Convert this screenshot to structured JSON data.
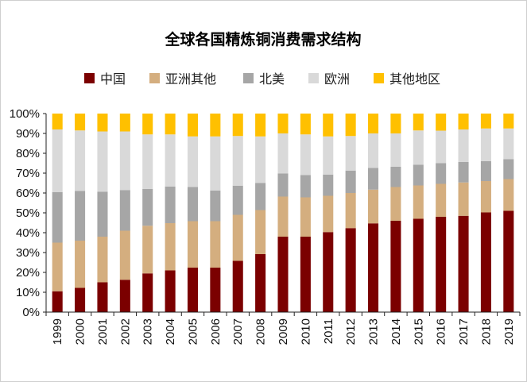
{
  "chart_data": {
    "type": "bar",
    "stacked": true,
    "percent": true,
    "title": "全球各国精炼铜消费需求结构",
    "xlabel": "",
    "ylabel": "",
    "ylim": [
      0,
      100
    ],
    "y_ticks": [
      "0%",
      "10%",
      "20%",
      "30%",
      "40%",
      "50%",
      "60%",
      "70%",
      "80%",
      "90%",
      "100%"
    ],
    "legend_position": "top",
    "categories": [
      "1999",
      "2000",
      "2001",
      "2002",
      "2003",
      "2004",
      "2005",
      "2006",
      "2007",
      "2008",
      "2009",
      "2010",
      "2011",
      "2012",
      "2013",
      "2014",
      "2015",
      "2016",
      "2017",
      "2018",
      "2019"
    ],
    "series": [
      {
        "name": "中国",
        "color": "#7b0000",
        "values": [
          10.5,
          12.2,
          15.0,
          16.3,
          19.5,
          21.0,
          22.4,
          22.4,
          25.8,
          29.2,
          38.0,
          38.0,
          40.3,
          42.3,
          44.7,
          46.0,
          47.0,
          48.0,
          48.5,
          50.2,
          51.0
        ]
      },
      {
        "name": "亚洲其他",
        "color": "#d4ae7f",
        "values": [
          24.5,
          23.8,
          23.0,
          24.7,
          24.0,
          23.8,
          23.4,
          23.4,
          23.2,
          22.2,
          20.2,
          19.8,
          18.3,
          17.7,
          17.0,
          17.0,
          16.8,
          16.6,
          16.8,
          15.8,
          16.0
        ]
      },
      {
        "name": "北美",
        "color": "#a6a6a6",
        "values": [
          25.5,
          25.0,
          22.6,
          20.5,
          18.5,
          18.4,
          17.2,
          15.4,
          14.7,
          13.7,
          11.6,
          11.2,
          10.7,
          11.3,
          10.9,
          10.2,
          10.4,
          10.4,
          10.3,
          10.0,
          10.0
        ]
      },
      {
        "name": "欧洲",
        "color": "#d9d9d9",
        "values": [
          31.5,
          30.5,
          30.4,
          29.5,
          27.5,
          26.3,
          25.5,
          27.3,
          25.0,
          23.4,
          20.2,
          20.5,
          19.2,
          17.4,
          17.4,
          16.8,
          17.3,
          16.4,
          16.4,
          16.5,
          15.5
        ]
      },
      {
        "name": "其他地区",
        "color": "#ffc000",
        "values": [
          8.0,
          8.5,
          9.0,
          9.0,
          10.5,
          10.5,
          11.5,
          11.5,
          11.3,
          11.5,
          10.0,
          10.5,
          11.5,
          11.3,
          10.0,
          10.0,
          8.5,
          8.6,
          8.0,
          7.5,
          7.5
        ]
      }
    ]
  }
}
